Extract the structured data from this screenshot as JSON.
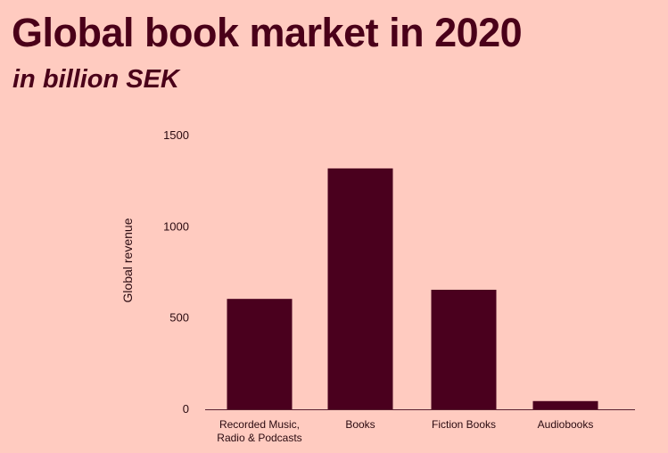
{
  "header": {
    "title": "Global book market in 2020",
    "subtitle": "in billion SEK"
  },
  "colors": {
    "background": "#ffcbc0",
    "bar": "#4a001e",
    "text": "#4a0019"
  },
  "chart_data": {
    "type": "bar",
    "title": "Global book market in 2020",
    "subtitle": "in billion SEK",
    "xlabel": "",
    "ylabel": "Global revenue",
    "categories": [
      [
        "Recorded Music,",
        "Radio & Podcasts"
      ],
      [
        "Books"
      ],
      [
        "Fiction Books"
      ],
      [
        "Audiobooks"
      ]
    ],
    "values": [
      605,
      1320,
      655,
      45
    ],
    "ylim": [
      0,
      1500
    ],
    "yticks": [
      0,
      500,
      1000,
      1500
    ],
    "grid": false,
    "legend": "none"
  }
}
